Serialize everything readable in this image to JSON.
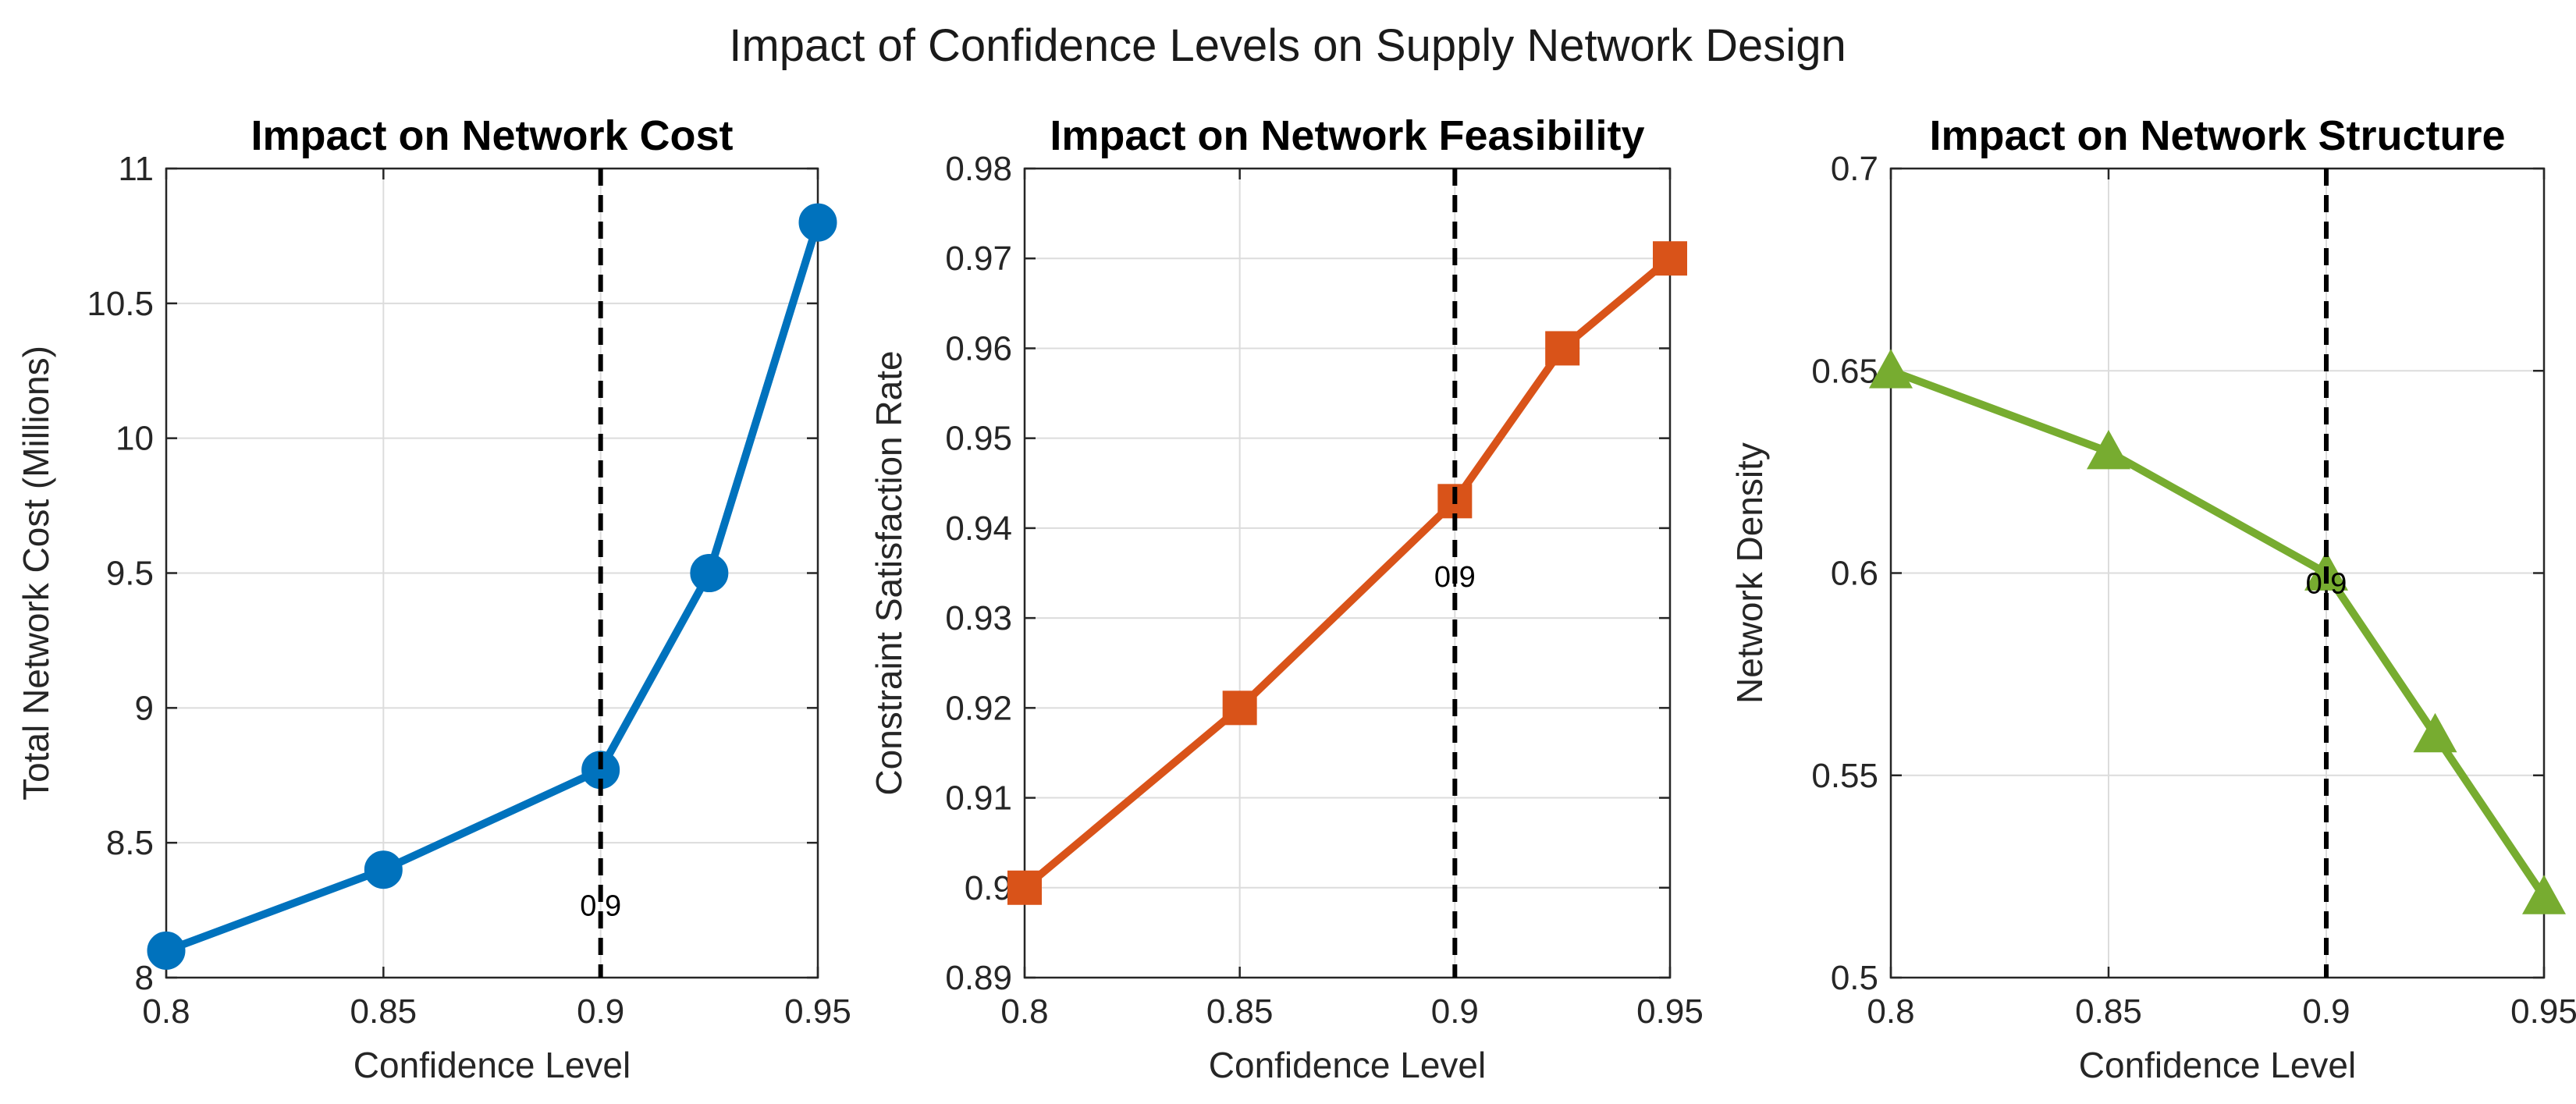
{
  "figure": {
    "title": "Impact of Confidence Levels on Supply Network Design"
  },
  "chart_data": [
    {
      "type": "line",
      "title": "Impact on Network Cost",
      "xlabel": "Confidence Level",
      "ylabel": "Total Network Cost (Millions)",
      "x": [
        0.8,
        0.85,
        0.9,
        0.925,
        0.95
      ],
      "values": [
        8.1,
        8.4,
        8.77,
        9.5,
        10.8
      ],
      "xlim": [
        0.8,
        0.95
      ],
      "ylim": [
        8,
        11
      ],
      "xticks": [
        0.8,
        0.85,
        0.9,
        0.95
      ],
      "xtick_labels": [
        "0.8",
        "0.85",
        "0.9",
        "0.95"
      ],
      "yticks": [
        8,
        8.5,
        9,
        9.5,
        10,
        10.5,
        11
      ],
      "ytick_labels": [
        "8",
        "8.5",
        "9",
        "9.5",
        "10",
        "10.5",
        "11"
      ],
      "color": "#0072BD",
      "marker": "circle",
      "grid": true,
      "reference_line": {
        "x": 0.9,
        "label": "0.9",
        "label_y": 8.23
      }
    },
    {
      "type": "line",
      "title": "Impact on Network Feasibility",
      "xlabel": "Confidence Level",
      "ylabel": "Constraint Satisfaction Rate",
      "x": [
        0.8,
        0.85,
        0.9,
        0.925,
        0.95
      ],
      "values": [
        0.9,
        0.92,
        0.943,
        0.96,
        0.97
      ],
      "xlim": [
        0.8,
        0.95
      ],
      "ylim": [
        0.89,
        0.98
      ],
      "xticks": [
        0.8,
        0.85,
        0.9,
        0.95
      ],
      "xtick_labels": [
        "0.8",
        "0.85",
        "0.9",
        "0.95"
      ],
      "yticks": [
        0.89,
        0.9,
        0.91,
        0.92,
        0.93,
        0.94,
        0.95,
        0.96,
        0.97,
        0.98
      ],
      "ytick_labels": [
        "0.89",
        "0.9",
        "0.91",
        "0.92",
        "0.93",
        "0.94",
        "0.95",
        "0.96",
        "0.97",
        "0.98"
      ],
      "color": "#D95319",
      "marker": "square",
      "grid": true,
      "reference_line": {
        "x": 0.9,
        "label": "0.9",
        "label_y": 0.9335
      }
    },
    {
      "type": "line",
      "title": "Impact on Network Structure",
      "xlabel": "Confidence Level",
      "ylabel": "Network Density",
      "x": [
        0.8,
        0.85,
        0.9,
        0.925,
        0.95
      ],
      "values": [
        0.65,
        0.63,
        0.6,
        0.56,
        0.52
      ],
      "xlim": [
        0.8,
        0.95
      ],
      "ylim": [
        0.5,
        0.7
      ],
      "xticks": [
        0.8,
        0.85,
        0.9,
        0.95
      ],
      "xtick_labels": [
        "0.8",
        "0.85",
        "0.9",
        "0.95"
      ],
      "yticks": [
        0.5,
        0.55,
        0.6,
        0.65,
        0.7
      ],
      "ytick_labels": [
        "0.5",
        "0.55",
        "0.6",
        "0.65",
        "0.7"
      ],
      "color": "#77AC30",
      "marker": "triangle",
      "grid": true,
      "reference_line": {
        "x": 0.9,
        "label": "0.9",
        "label_y": 0.595
      }
    }
  ]
}
